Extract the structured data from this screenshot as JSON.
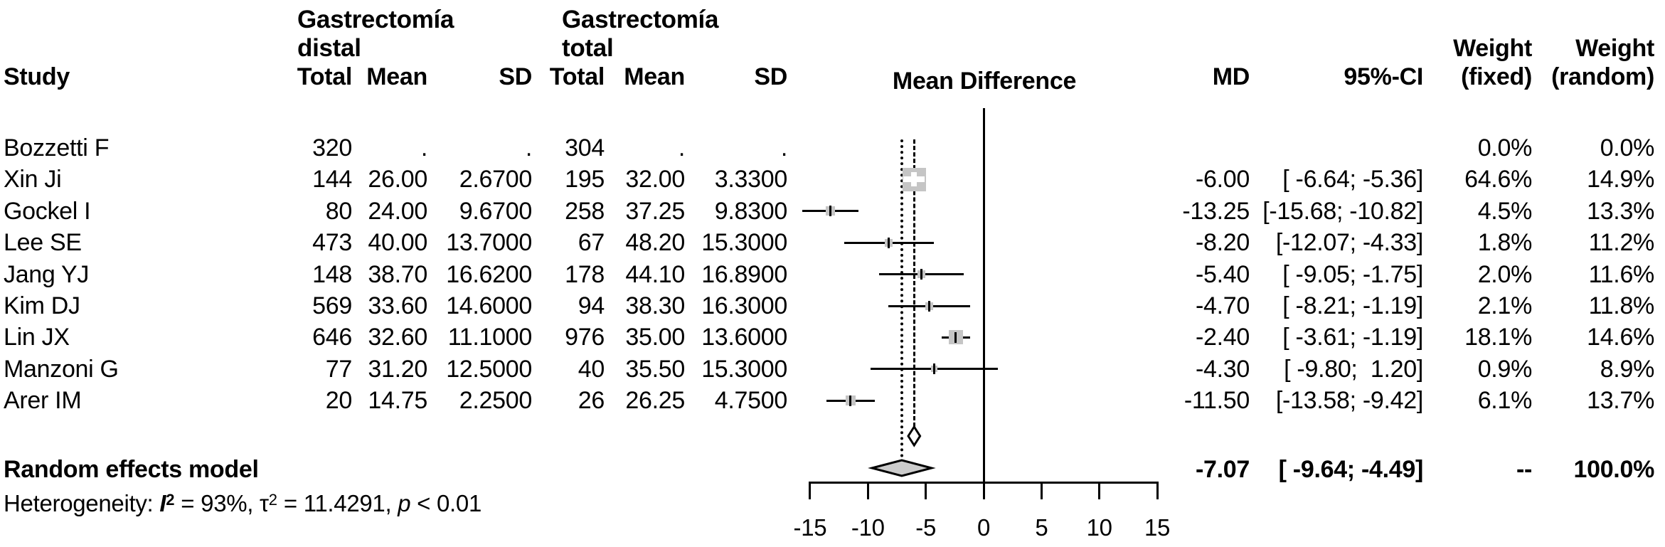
{
  "header": {
    "group1_line1": "Gastrectomía",
    "group1_line2": "distal",
    "group2_line1": "Gastrectomía",
    "group2_line2": "total",
    "weight_fixed_top": "Weight",
    "weight_random_top": "Weight",
    "study": "Study",
    "total1": "Total",
    "mean1": "Mean",
    "sd1": "SD",
    "total2": "Total",
    "mean2": "Mean",
    "sd2": "SD",
    "mean_difference": "Mean Difference",
    "md": "MD",
    "ci": "95%-CI",
    "weight_fixed_bottom": "(fixed)",
    "weight_random_bottom": "(random)"
  },
  "summary": {
    "label": "Random effects model",
    "md_text": "-7.07",
    "ci_text": "[ -9.64; -4.49]",
    "weight_fixed": "--",
    "weight_random": "100.0%"
  },
  "heterogeneity": {
    "prefix": "Heterogeneity: ",
    "i_label": "I",
    "i_sup": "2",
    "mid1": " = 93%, ",
    "tau": "τ",
    "tau_sup": "2",
    "mid2": " = 11.4291, ",
    "p_label": "p",
    "tail": " < 0.01"
  },
  "chart_data": {
    "type": "forest",
    "title": "Mean Difference",
    "x_axis": {
      "min": -15,
      "max": 15,
      "ticks": [
        -15,
        -10,
        -5,
        0,
        5,
        10,
        15
      ]
    },
    "zero_line": 0,
    "fixed_effect_line": -6.0,
    "random_effect_line": -7.07,
    "marker_colors": {
      "square_fill": "#c5c5c5",
      "diamond_fill": "#cccccc",
      "line": "#000000"
    },
    "studies": [
      {
        "name": "Bozzetti F",
        "total1": "320",
        "mean1": ".",
        "sd1": ".",
        "total2": "304",
        "mean2": ".",
        "sd2": ".",
        "md_text": "",
        "ci_text": "",
        "wf_text": "0.0%",
        "wr_text": "0.0%",
        "md": null,
        "lo": null,
        "hi": null,
        "weight_fixed_pct": 0.0,
        "weight_random_pct": 0.0
      },
      {
        "name": "Xin Ji",
        "total1": "144",
        "mean1": "26.00",
        "sd1": "2.6700",
        "total2": "195",
        "mean2": "32.00",
        "sd2": "3.3300",
        "md_text": "-6.00",
        "ci_text": "[ -6.64; -5.36]",
        "wf_text": "64.6%",
        "wr_text": "14.9%",
        "md": -6.0,
        "lo": -6.64,
        "hi": -5.36,
        "weight_fixed_pct": 64.6,
        "weight_random_pct": 14.9
      },
      {
        "name": "Gockel I",
        "total1": "80",
        "mean1": "24.00",
        "sd1": "9.6700",
        "total2": "258",
        "mean2": "37.25",
        "sd2": "9.8300",
        "md_text": "-13.25",
        "ci_text": "[-15.68; -10.82]",
        "wf_text": "4.5%",
        "wr_text": "13.3%",
        "md": -13.25,
        "lo": -15.68,
        "hi": -10.82,
        "weight_fixed_pct": 4.5,
        "weight_random_pct": 13.3
      },
      {
        "name": "Lee SE",
        "total1": "473",
        "mean1": "40.00",
        "sd1": "13.7000",
        "total2": "67",
        "mean2": "48.20",
        "sd2": "15.3000",
        "md_text": "-8.20",
        "ci_text": "[-12.07; -4.33]",
        "wf_text": "1.8%",
        "wr_text": "11.2%",
        "md": -8.2,
        "lo": -12.07,
        "hi": -4.33,
        "weight_fixed_pct": 1.8,
        "weight_random_pct": 11.2
      },
      {
        "name": "Jang YJ",
        "total1": "148",
        "mean1": "38.70",
        "sd1": "16.6200",
        "total2": "178",
        "mean2": "44.10",
        "sd2": "16.8900",
        "md_text": "-5.40",
        "ci_text": "[ -9.05; -1.75]",
        "wf_text": "2.0%",
        "wr_text": "11.6%",
        "md": -5.4,
        "lo": -9.05,
        "hi": -1.75,
        "weight_fixed_pct": 2.0,
        "weight_random_pct": 11.6
      },
      {
        "name": "Kim DJ",
        "total1": "569",
        "mean1": "33.60",
        "sd1": "14.6000",
        "total2": "94",
        "mean2": "38.30",
        "sd2": "16.3000",
        "md_text": "-4.70",
        "ci_text": "[ -8.21; -1.19]",
        "wf_text": "2.1%",
        "wr_text": "11.8%",
        "md": -4.7,
        "lo": -8.21,
        "hi": -1.19,
        "weight_fixed_pct": 2.1,
        "weight_random_pct": 11.8
      },
      {
        "name": "Lin JX",
        "total1": "646",
        "mean1": "32.60",
        "sd1": "11.1000",
        "total2": "976",
        "mean2": "35.00",
        "sd2": "13.6000",
        "md_text": "-2.40",
        "ci_text": "[ -3.61; -1.19]",
        "wf_text": "18.1%",
        "wr_text": "14.6%",
        "md": -2.4,
        "lo": -3.61,
        "hi": -1.19,
        "weight_fixed_pct": 18.1,
        "weight_random_pct": 14.6
      },
      {
        "name": "Manzoni G",
        "total1": "77",
        "mean1": "31.20",
        "sd1": "12.5000",
        "total2": "40",
        "mean2": "35.50",
        "sd2": "15.3000",
        "md_text": "-4.30",
        "ci_text": "[ -9.80;  1.20]",
        "wf_text": "0.9%",
        "wr_text": "8.9%",
        "md": -4.3,
        "lo": -9.8,
        "hi": 1.2,
        "weight_fixed_pct": 0.9,
        "weight_random_pct": 8.9
      },
      {
        "name": "Arer IM",
        "total1": "20",
        "mean1": "14.75",
        "sd1": "2.2500",
        "total2": "26",
        "mean2": "26.25",
        "sd2": "4.7500",
        "md_text": "-11.50",
        "ci_text": "[-13.58; -9.42]",
        "wf_text": "6.1%",
        "wr_text": "13.7%",
        "md": -11.5,
        "lo": -13.58,
        "hi": -9.42,
        "weight_fixed_pct": 6.1,
        "weight_random_pct": 13.7
      }
    ],
    "fixed_diamond": {
      "md": -6.0,
      "lo": -6.51,
      "hi": -5.49
    },
    "random_diamond": {
      "md": -7.07,
      "lo": -9.64,
      "hi": -4.49
    },
    "heterogeneity": {
      "I2": "93%",
      "tau2": 11.4291,
      "p": "< 0.01"
    }
  }
}
